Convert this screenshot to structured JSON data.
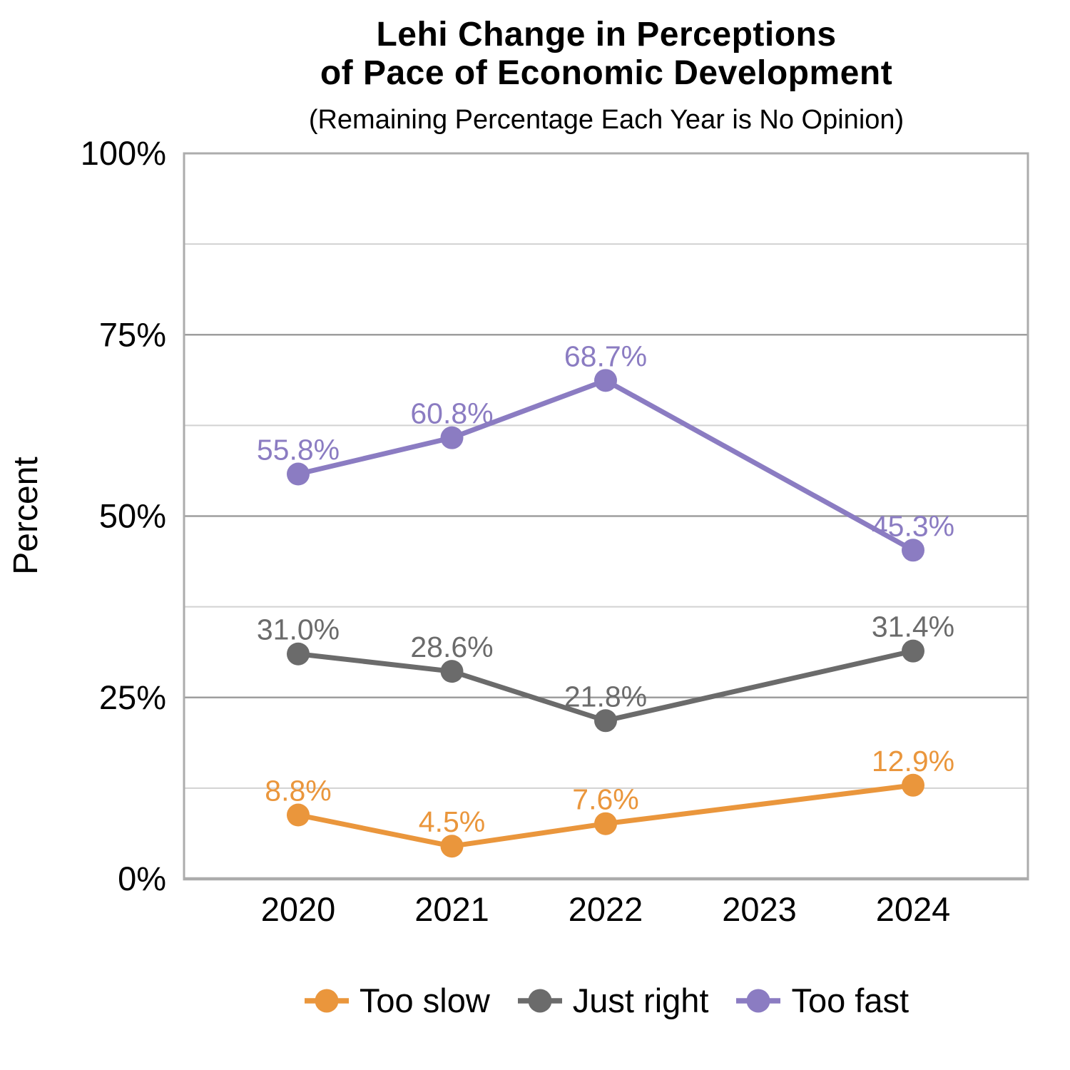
{
  "title_line1": "Lehi Change in Perceptions",
  "title_line2": "of Pace of Economic Development",
  "subtitle": "(Remaining Percentage Each Year is No Opinion)",
  "chart_data": {
    "type": "line",
    "title": "Lehi Change in Perceptions of Pace of Economic Development",
    "subtitle": "(Remaining Percentage Each Year is No Opinion)",
    "xlabel": "",
    "ylabel": "Percent",
    "x": [
      "2020",
      "2021",
      "2022",
      "2023",
      "2024"
    ],
    "ylim": [
      0,
      100
    ],
    "yaxis": {
      "ticks": [
        {
          "value": 0,
          "label": "0%"
        },
        {
          "value": 25,
          "label": "25%"
        },
        {
          "value": 50,
          "label": "50%"
        },
        {
          "value": 75,
          "label": "75%"
        },
        {
          "value": 100,
          "label": "100%"
        }
      ],
      "minor": [
        12.5,
        37.5,
        62.5,
        87.5
      ]
    },
    "grid": "horizontal-only",
    "legend_position": "bottom",
    "series": [
      {
        "name": "Too slow",
        "color": "#EA963C",
        "values": [
          8.8,
          4.5,
          7.6,
          null,
          12.9
        ],
        "labels": [
          "8.8%",
          "4.5%",
          "7.6%",
          null,
          "12.9%"
        ]
      },
      {
        "name": "Just right",
        "color": "#6B6B6B",
        "values": [
          31.0,
          28.6,
          21.8,
          null,
          31.4
        ],
        "labels": [
          "31.0%",
          "28.6%",
          "21.8%",
          null,
          "31.4%"
        ]
      },
      {
        "name": "Too fast",
        "color": "#8B7CC2",
        "values": [
          55.8,
          60.8,
          68.7,
          null,
          45.3
        ],
        "labels": [
          "55.8%",
          "60.8%",
          "68.7%",
          null,
          "45.3%"
        ]
      }
    ],
    "style": {
      "minor_grid": "#D2D2D2",
      "major_grid": "#9E9E9E",
      "panel_border": "#ACACAC",
      "text_color": "#000000"
    }
  }
}
